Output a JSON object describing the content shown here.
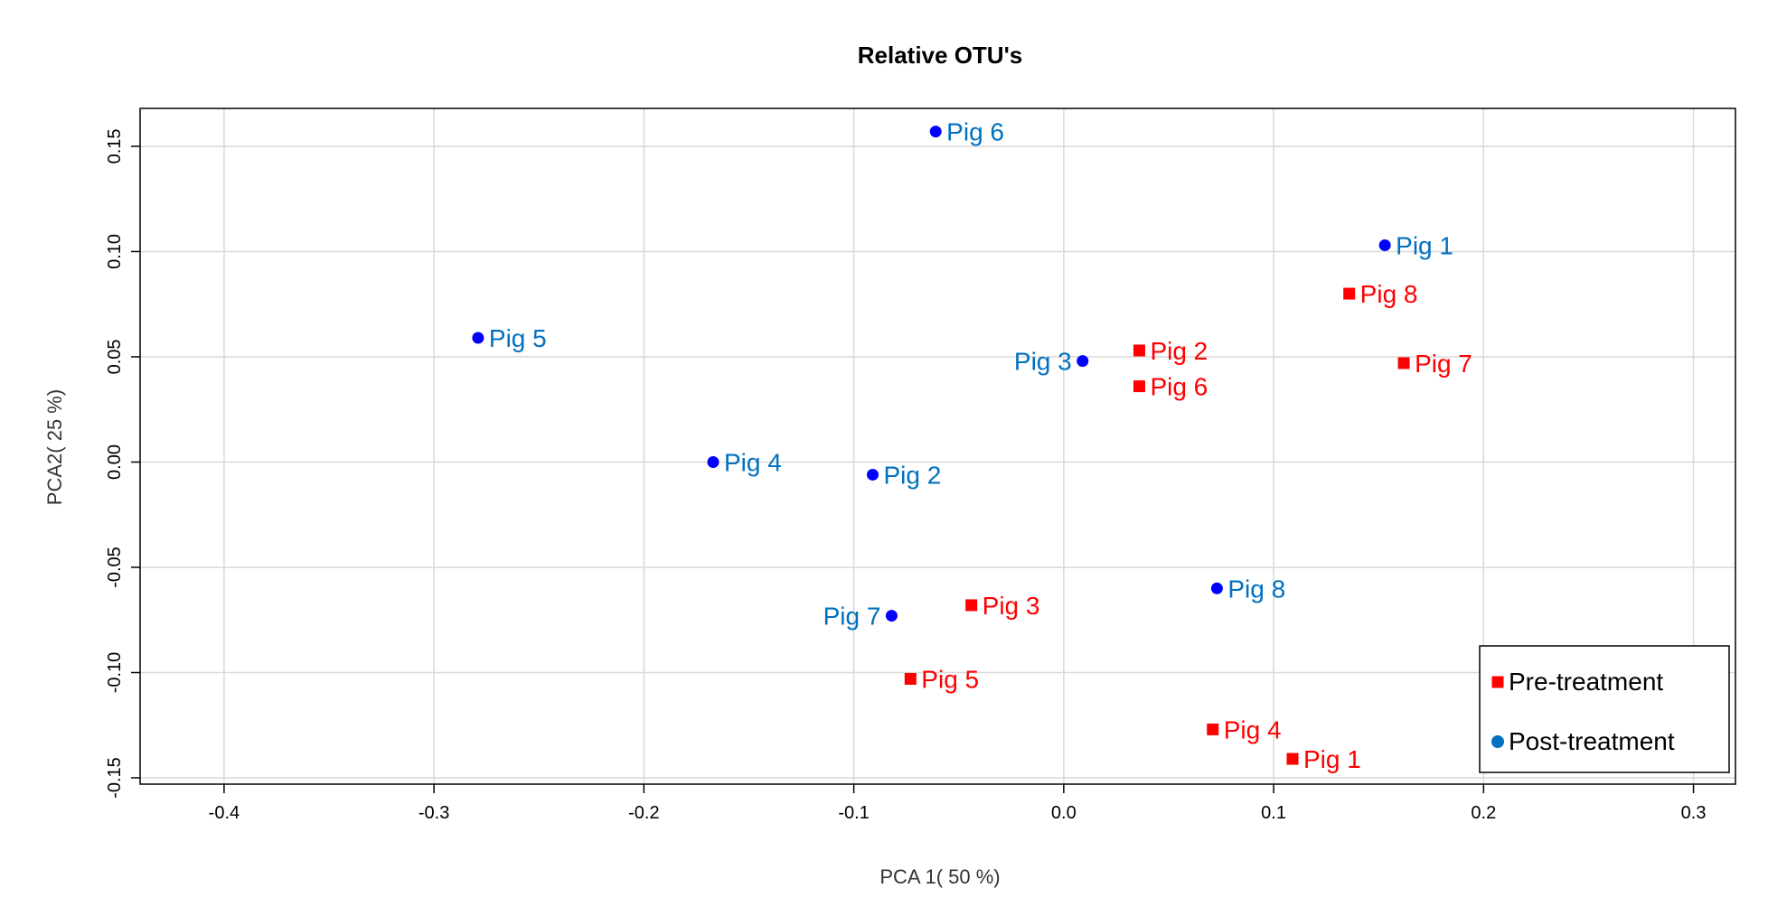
{
  "chart_data": {
    "type": "scatter",
    "title": "Relative OTU's",
    "xlabel": "PCA 1( 50 %)",
    "ylabel": "PCA2( 25 %)",
    "xlim": [
      -0.44,
      0.32
    ],
    "ylim": [
      -0.153,
      0.168
    ],
    "x_ticks": [
      -0.4,
      -0.3,
      -0.2,
      -0.1,
      0.0,
      0.1,
      0.2,
      0.3
    ],
    "x_tick_labels": [
      "-0.4",
      "-0.3",
      "-0.2",
      "-0.1",
      "0.0",
      "0.1",
      "0.2",
      "0.3"
    ],
    "y_ticks": [
      -0.15,
      -0.1,
      -0.05,
      0.0,
      0.05,
      0.1,
      0.15
    ],
    "y_tick_labels": [
      "-0.15",
      "-0.10",
      "-0.05",
      "0.00",
      "0.05",
      "0.10",
      "0.15"
    ],
    "grid": true,
    "legend_position": "bottom-right",
    "series": [
      {
        "name": "Pre-treatment",
        "marker": "square",
        "marker_color": "#ff0000",
        "label_color": "#ff0000",
        "points": [
          {
            "label": "Pig 1",
            "x": 0.109,
            "y": -0.141,
            "label_side": "right"
          },
          {
            "label": "Pig 2",
            "x": 0.036,
            "y": 0.053,
            "label_side": "right"
          },
          {
            "label": "Pig 3",
            "x": -0.044,
            "y": -0.068,
            "label_side": "right"
          },
          {
            "label": "Pig 4",
            "x": 0.071,
            "y": -0.127,
            "label_side": "right"
          },
          {
            "label": "Pig 5",
            "x": -0.073,
            "y": -0.103,
            "label_side": "right"
          },
          {
            "label": "Pig 6",
            "x": 0.036,
            "y": 0.036,
            "label_side": "right"
          },
          {
            "label": "Pig 7",
            "x": 0.162,
            "y": 0.047,
            "label_side": "right"
          },
          {
            "label": "Pig 8",
            "x": 0.136,
            "y": 0.08,
            "label_side": "right"
          }
        ]
      },
      {
        "name": "Post-treatment",
        "marker": "circle",
        "marker_color": "#0000ff",
        "label_color": "#0070c0",
        "legend_marker_color": "#0070c0",
        "points": [
          {
            "label": "Pig 1",
            "x": 0.153,
            "y": 0.103,
            "label_side": "right"
          },
          {
            "label": "Pig 2",
            "x": -0.091,
            "y": -0.006,
            "label_side": "right"
          },
          {
            "label": "Pig 3",
            "x": 0.009,
            "y": 0.048,
            "label_side": "left"
          },
          {
            "label": "Pig 4",
            "x": -0.167,
            "y": 0.0,
            "label_side": "right"
          },
          {
            "label": "Pig 5",
            "x": -0.279,
            "y": 0.059,
            "label_side": "right"
          },
          {
            "label": "Pig 6",
            "x": -0.061,
            "y": 0.157,
            "label_side": "right"
          },
          {
            "label": "Pig 7",
            "x": -0.082,
            "y": -0.073,
            "label_side": "left"
          },
          {
            "label": "Pig 8",
            "x": 0.073,
            "y": -0.06,
            "label_side": "right"
          }
        ]
      }
    ]
  }
}
